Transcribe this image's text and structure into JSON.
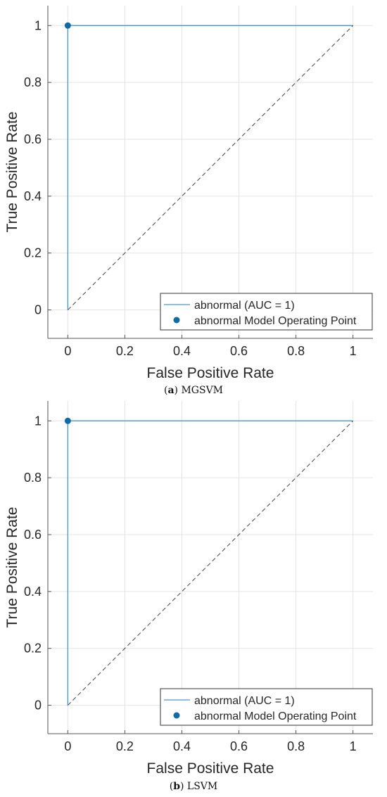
{
  "chart_data": [
    {
      "type": "line",
      "panel": "a",
      "xlabel": "False Positive Rate",
      "ylabel": "True Positive Rate",
      "xlim": [
        -0.07,
        1.07
      ],
      "ylim": [
        -0.1,
        1.07
      ],
      "xticks": [
        "0",
        "0.2",
        "0.4",
        "0.6",
        "0.8",
        "1"
      ],
      "yticks": [
        "0",
        "0.2",
        "0.4",
        "0.6",
        "0.8",
        "1"
      ],
      "grid": true,
      "legend_position": "bottom-right",
      "series": [
        {
          "name": "abnormal (AUC = 1)",
          "style": "line",
          "color": "#4a97c8",
          "x": [
            0,
            0,
            1
          ],
          "y": [
            0,
            1,
            1
          ]
        },
        {
          "name": "abnormal Model Operating Point",
          "style": "marker",
          "color": "#0f6aa6",
          "x": [
            0
          ],
          "y": [
            1
          ]
        },
        {
          "style": "dashed",
          "color": "#444444",
          "x": [
            0,
            1
          ],
          "y": [
            0,
            1
          ]
        }
      ],
      "caption": {
        "label": "(a)",
        "letter": "a",
        "text": "MGSVM"
      }
    },
    {
      "type": "line",
      "panel": "b",
      "xlabel": "False Positive Rate",
      "ylabel": "True Positive Rate",
      "xlim": [
        -0.07,
        1.07
      ],
      "ylim": [
        -0.1,
        1.07
      ],
      "xticks": [
        "0",
        "0.2",
        "0.4",
        "0.6",
        "0.8",
        "1"
      ],
      "yticks": [
        "0",
        "0.2",
        "0.4",
        "0.6",
        "0.8",
        "1"
      ],
      "grid": true,
      "legend_position": "bottom-right",
      "series": [
        {
          "name": "abnormal (AUC = 1)",
          "style": "line",
          "color": "#4a97c8",
          "x": [
            0,
            0,
            1
          ],
          "y": [
            0,
            1,
            1
          ]
        },
        {
          "name": "abnormal Model Operating Point",
          "style": "marker",
          "color": "#0f6aa6",
          "x": [
            0
          ],
          "y": [
            1
          ]
        },
        {
          "style": "dashed",
          "color": "#444444",
          "x": [
            0,
            1
          ],
          "y": [
            0,
            1
          ]
        }
      ],
      "caption": {
        "label": "(b)",
        "letter": "b",
        "text": "LSVM"
      }
    }
  ]
}
